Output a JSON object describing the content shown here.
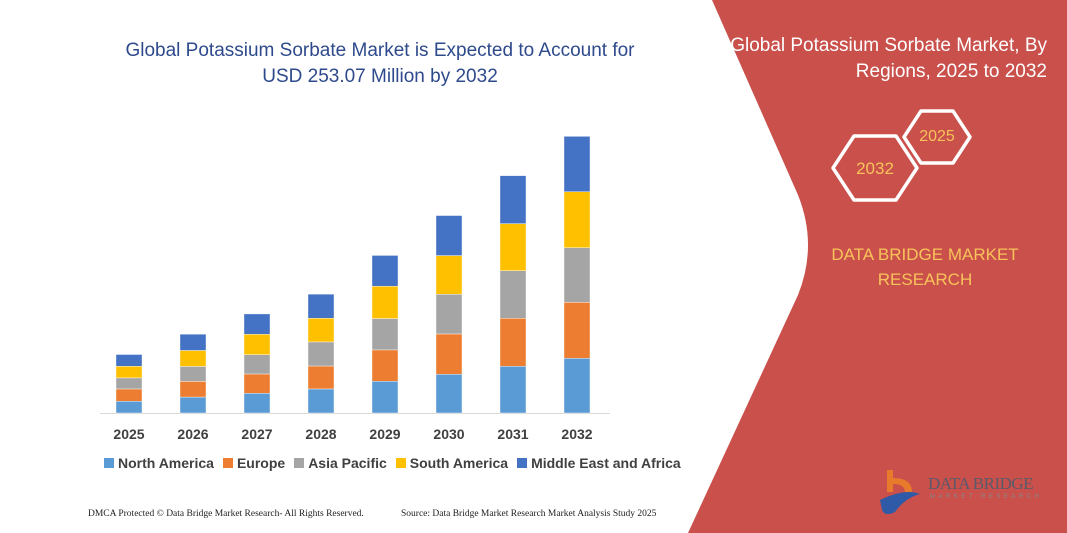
{
  "header": {
    "title_line1": "Global Potassium Sorbate Market is Expected to Account for",
    "title_line2": "USD 253.07 Million by 2032"
  },
  "side_panel": {
    "title_line1": "Global Potassium Sorbate Market, By",
    "title_line2": "Regions, 2025 to 2032",
    "hex_start": "2025",
    "hex_end": "2032",
    "brand_line1": "DATA BRIDGE MARKET",
    "brand_line2": "RESEARCH",
    "logo_text": "DATA BRIDGE",
    "logo_subtext": "MARKET RESEARCH",
    "color": "#C9504B"
  },
  "chart_data": {
    "type": "bar",
    "stacked": true,
    "title": "Global Potassium Sorbate Market is Expected to Account for USD 253.07 Million by 2032",
    "categories": [
      "2025",
      "2026",
      "2027",
      "2028",
      "2029",
      "2030",
      "2031",
      "2032"
    ],
    "series": [
      {
        "name": "North America",
        "color": "#5B9BD5",
        "values": [
          10.7,
          14.6,
          18.0,
          22.0,
          29.0,
          35.4,
          42.7,
          50.0
        ]
      },
      {
        "name": "Europe",
        "color": "#ED7D31",
        "values": [
          11.3,
          14.3,
          17.7,
          21.0,
          28.7,
          36.9,
          43.9,
          51.2
        ]
      },
      {
        "name": "Asia Pacific",
        "color": "#A5A5A5",
        "values": [
          10.1,
          13.7,
          17.7,
          22.0,
          28.7,
          36.3,
          43.6,
          50.0
        ]
      },
      {
        "name": "South America",
        "color": "#FFC000",
        "values": [
          10.7,
          14.6,
          18.6,
          21.7,
          29.6,
          35.4,
          43.0,
          51.2
        ]
      },
      {
        "name": "Middle East and Africa",
        "color": "#4472C4",
        "values": [
          10.7,
          14.9,
          18.6,
          22.0,
          28.1,
          36.6,
          43.9,
          50.6
        ]
      }
    ],
    "ylim": [
      0,
      260
    ],
    "y_axis_shown": false,
    "grid": false,
    "legend_position": "bottom"
  },
  "footer": {
    "left": "DMCA Protected © Data Bridge Market Research-  All Rights Reserved.",
    "right": "Source: Data Bridge Market Research  Market Analysis Study 2025"
  }
}
